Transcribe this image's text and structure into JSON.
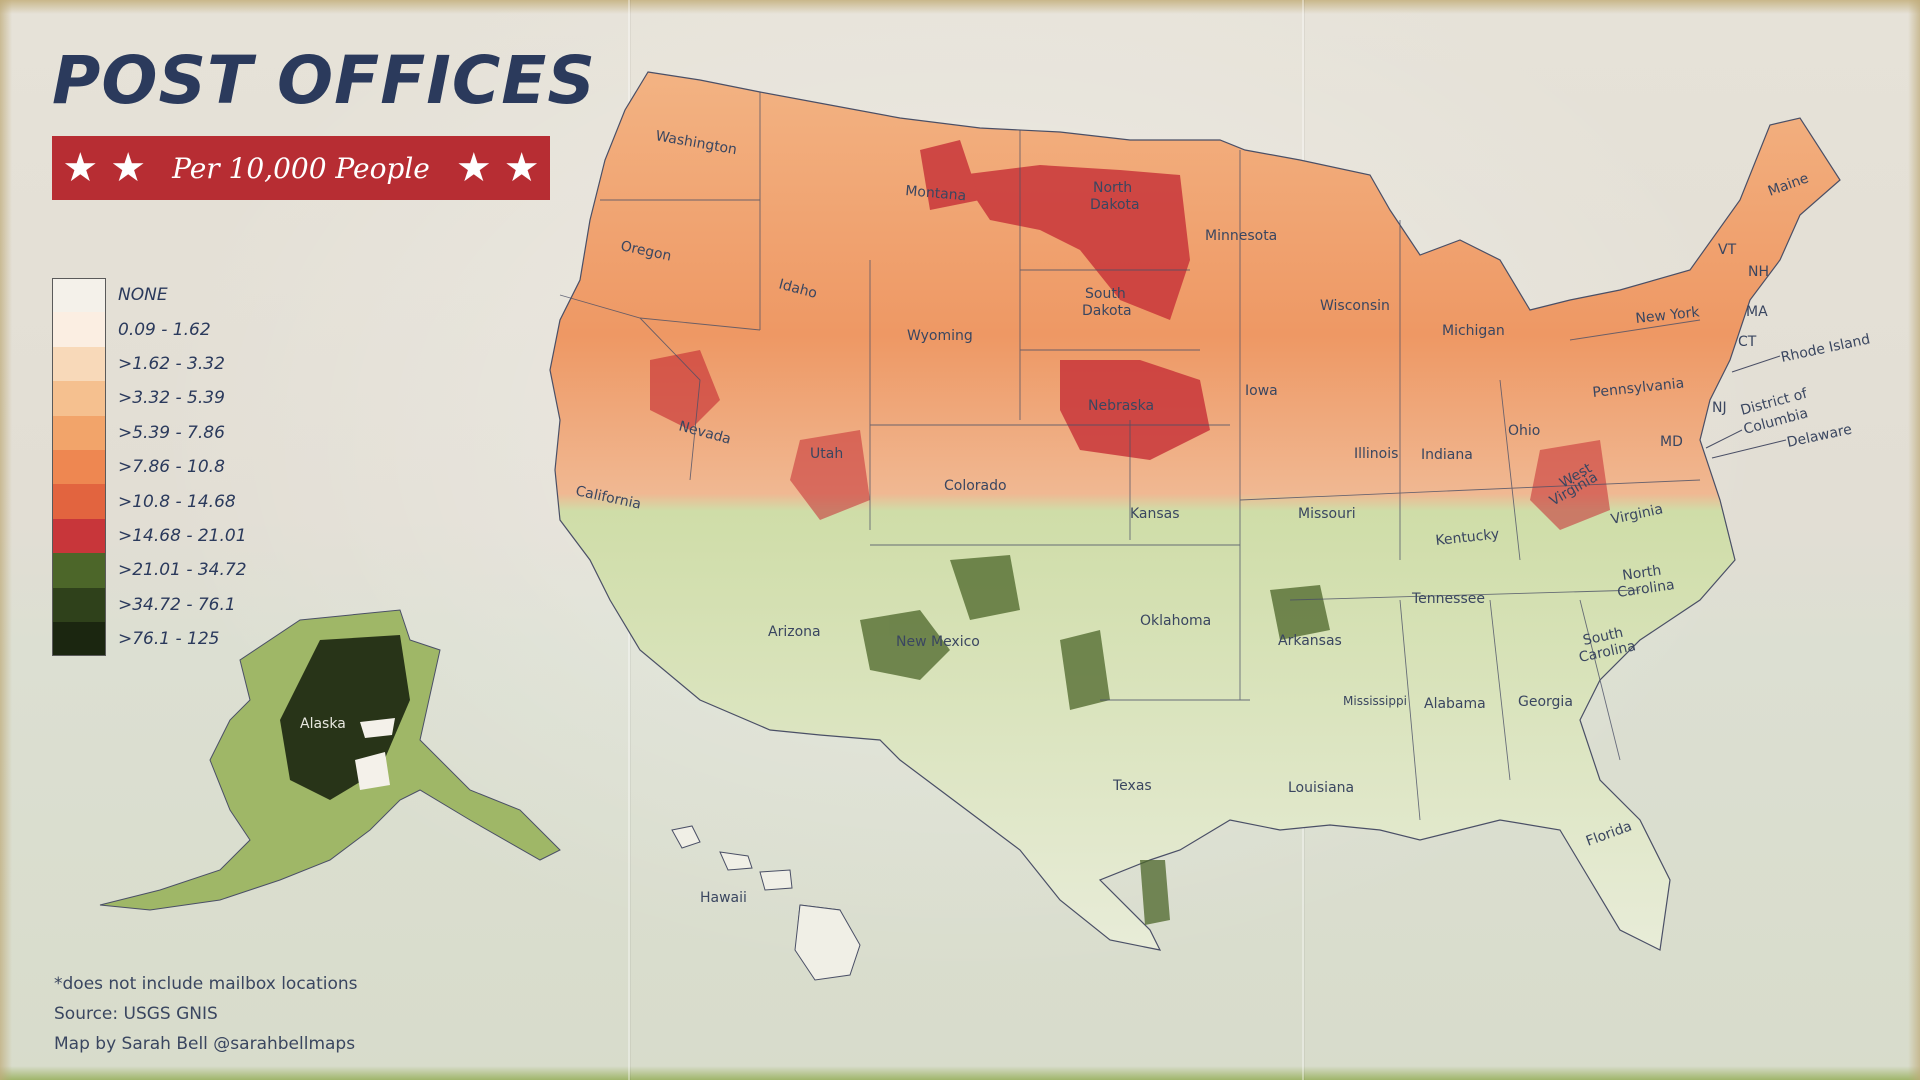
{
  "title": "POST OFFICES",
  "subtitle": "Per 10,000 People",
  "legend": [
    {
      "label": "NONE",
      "color": "#f4f1ea"
    },
    {
      "label": "0.09 - 1.62",
      "color": "#fbeee2"
    },
    {
      "label": ">1.62 - 3.32",
      "color": "#f8d9b9"
    },
    {
      "label": ">3.32 - 5.39",
      "color": "#f5c08f"
    },
    {
      "label": ">5.39 - 7.86",
      "color": "#f2a46a"
    },
    {
      "label": ">7.86 - 10.8",
      "color": "#ee8751"
    },
    {
      "label": ">10.8 - 14.68",
      "color": "#e2643f"
    },
    {
      "label": ">14.68 - 21.01",
      "color": "#c8363a"
    },
    {
      "label": ">21.01 - 34.72",
      "color": "#4c6629"
    },
    {
      "label": ">34.72 - 76.1",
      "color": "#2f411b"
    },
    {
      "label": ">76.1 - 125",
      "color": "#1b2610"
    }
  ],
  "notes": {
    "footnote": "*does not include mailbox locations",
    "source": "Source: USGS GNIS",
    "credit": "Map by Sarah Bell @sarahbellmaps"
  },
  "state_labels": {
    "washington": "Washington",
    "oregon": "Oregon",
    "california": "California",
    "idaho": "Idaho",
    "nevada": "Nevada",
    "montana": "Montana",
    "wyoming": "Wyoming",
    "utah": "Utah",
    "arizona": "Arizona",
    "colorado": "Colorado",
    "new_mexico": "New Mexico",
    "north_dakota_1": "North",
    "north_dakota_2": "Dakota",
    "south_dakota_1": "South",
    "south_dakota_2": "Dakota",
    "nebraska": "Nebraska",
    "kansas": "Kansas",
    "oklahoma": "Oklahoma",
    "texas": "Texas",
    "minnesota": "Minnesota",
    "iowa": "Iowa",
    "missouri": "Missouri",
    "arkansas": "Arkansas",
    "louisiana": "Louisiana",
    "wisconsin": "Wisconsin",
    "illinois": "Illinois",
    "michigan": "Michigan",
    "indiana": "Indiana",
    "ohio": "Ohio",
    "kentucky": "Kentucky",
    "tennessee": "Tennessee",
    "mississippi": "Mississippi",
    "alabama": "Alabama",
    "georgia": "Georgia",
    "florida": "Florida",
    "south_carolina_1": "South",
    "south_carolina_2": "Carolina",
    "north_carolina_1": "North",
    "north_carolina_2": "Carolina",
    "virginia": "Virginia",
    "west_virginia_1": "West",
    "west_virginia_2": "Virginia",
    "pennsylvania": "Pennsylvania",
    "new_york": "New York",
    "maine": "Maine",
    "vt": "VT",
    "nh": "NH",
    "ma": "MA",
    "ct": "CT",
    "nj": "NJ",
    "md": "MD",
    "rhode_island": "Rhode Island",
    "dc_1": "District of",
    "dc_2": "Columbia",
    "delaware": "Delaware",
    "alaska": "Alaska",
    "hawaii": "Hawaii"
  }
}
